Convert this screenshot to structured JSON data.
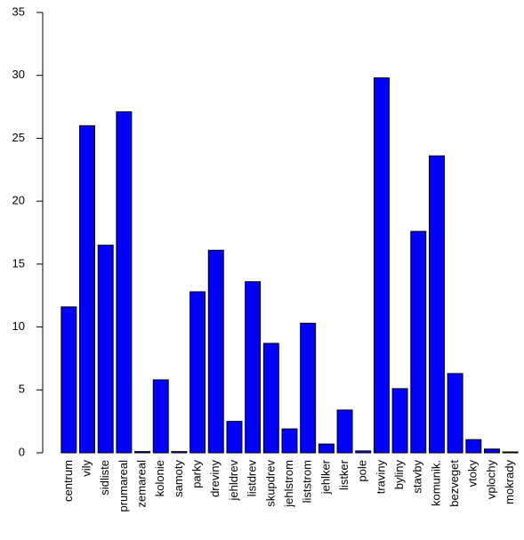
{
  "chart_data": {
    "type": "bar",
    "title": "",
    "xlabel": "",
    "ylabel": "",
    "ylim": [
      0,
      35
    ],
    "yticks": [
      0,
      5,
      10,
      15,
      20,
      25,
      30,
      35
    ],
    "grid": false,
    "legend": "none",
    "bar_color": "#0000FF",
    "categories": [
      "centrum",
      "vily",
      "sidliste",
      "prumareal",
      "zemareal",
      "kolonie",
      "samoty",
      "parky",
      "dreviny",
      "jehldrev",
      "listdrev",
      "skupdrev",
      "jehlstrom",
      "liststrom",
      "jehlker",
      "listker",
      "pole",
      "traviny",
      "byliny",
      "stavby",
      "komunik.",
      "bezveget",
      "vtoky",
      "vplochy",
      "mokrady"
    ],
    "values": [
      11.6,
      26.0,
      16.5,
      27.1,
      0.1,
      5.8,
      0.1,
      12.8,
      16.1,
      2.5,
      13.6,
      8.7,
      1.9,
      10.3,
      0.7,
      3.4,
      0.15,
      29.8,
      5.1,
      17.6,
      23.6,
      6.3,
      1.05,
      0.3,
      0.0
    ]
  }
}
